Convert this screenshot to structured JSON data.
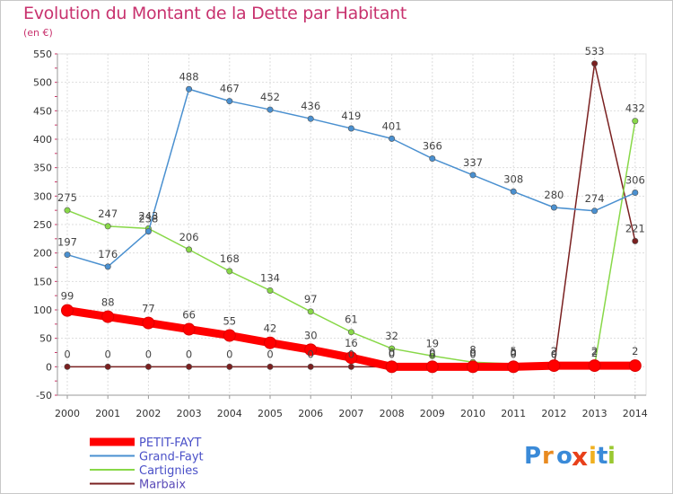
{
  "chart_data": {
    "type": "line",
    "title": "Evolution du Montant de la Dette par Habitant",
    "subtitle": "(en €)",
    "x": [
      "2000",
      "2001",
      "2002",
      "2003",
      "2004",
      "2005",
      "2006",
      "2007",
      "2008",
      "2009",
      "2010",
      "2011",
      "2012",
      "2013",
      "2014"
    ],
    "ylim": [
      -50,
      550
    ],
    "yticks": [
      -50,
      0,
      50,
      100,
      150,
      200,
      250,
      300,
      350,
      400,
      450,
      500,
      550
    ],
    "grid": true,
    "legend_position": "bottom-left",
    "series": [
      {
        "name": "PETIT-FAYT",
        "color": "#ff0000",
        "values": [
          99,
          88,
          77,
          66,
          55,
          42,
          30,
          16,
          0,
          0,
          0,
          0,
          2,
          2,
          2
        ],
        "labels": [
          "99",
          "88",
          "77",
          "66",
          "55",
          "42",
          "30",
          "16",
          "0",
          "0",
          "0",
          "0",
          "2",
          "2",
          "2"
        ]
      },
      {
        "name": "Grand-Fayt",
        "color": "#4a90d0",
        "values": [
          197,
          176,
          238,
          488,
          467,
          452,
          436,
          419,
          401,
          366,
          337,
          308,
          280,
          274,
          306
        ],
        "labels": [
          "197",
          "176",
          "238",
          "488",
          "467",
          "452",
          "436",
          "419",
          "401",
          "366",
          "337",
          "308",
          "280",
          "274",
          "306"
        ]
      },
      {
        "name": "Cartignies",
        "color": "#88d848",
        "values": [
          275,
          247,
          243,
          206,
          168,
          134,
          97,
          61,
          32,
          19,
          8,
          5,
          0,
          2,
          432
        ],
        "labels": [
          "275",
          "247",
          "243",
          "206",
          "168",
          "134",
          "97",
          "61",
          "32",
          "19",
          "8",
          "5",
          "0",
          "2",
          "432"
        ]
      },
      {
        "name": "Marbaix",
        "color": "#7a2020",
        "values": [
          0,
          0,
          0,
          0,
          0,
          0,
          0,
          0,
          0,
          0,
          0,
          0,
          0,
          533,
          221
        ],
        "labels": [
          "0",
          "0",
          "0",
          "0",
          "0",
          "0",
          "0",
          "0",
          "0",
          "0",
          "0",
          "0",
          "0",
          "533",
          "221"
        ]
      }
    ]
  },
  "brand": {
    "text_p": "P",
    "text_r": "r",
    "text_o": "o",
    "text_x": "x",
    "text_i": "i",
    "text_t": "t",
    "text_i2": "i"
  }
}
